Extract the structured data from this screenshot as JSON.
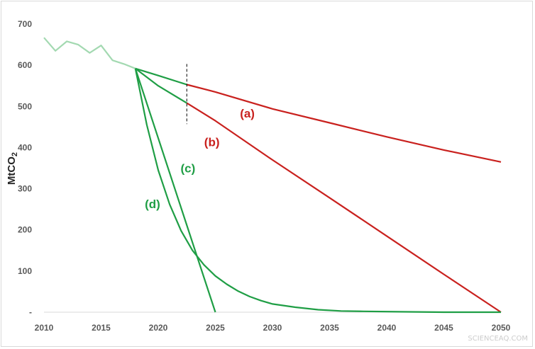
{
  "chart_data": {
    "type": "line",
    "xlabel": "",
    "ylabel": "MtCO",
    "ylabel_subscript": "2",
    "xlim": [
      2010,
      2050
    ],
    "ylim": [
      0,
      700
    ],
    "x_ticks": [
      "2010",
      "2015",
      "2020",
      "2025",
      "2030",
      "2035",
      "2040",
      "2045",
      "2050"
    ],
    "y_ticks": [
      "-",
      "100",
      "200",
      "300",
      "400",
      "500",
      "600",
      "700"
    ],
    "grid": false,
    "legend": "none",
    "annotations": [
      {
        "label": "(a)",
        "color": "#c9211e",
        "x": 2027.8,
        "y": 473
      },
      {
        "label": "(b)",
        "color": "#c9211e",
        "x": 2024.7,
        "y": 403
      },
      {
        "label": "(c)",
        "color": "#1f9e45",
        "x": 2022.6,
        "y": 340
      },
      {
        "label": "(d)",
        "color": "#1f9e45",
        "x": 2019.5,
        "y": 253
      }
    ],
    "marker_line": {
      "x": 2022.5,
      "y_from": 457,
      "y_to": 603,
      "style": "dashed"
    },
    "series": [
      {
        "color": "#a3d9b1",
        "x": [
          2010,
          2011,
          2012,
          2013,
          2014,
          2015,
          2016,
          2017,
          2018
        ],
        "y": [
          667,
          635,
          658,
          650,
          630,
          648,
          612,
          603,
          592
        ]
      },
      {
        "color": "#c9211e",
        "x": [
          2022.5,
          2025,
          2030,
          2035,
          2040,
          2045,
          2050
        ],
        "y": [
          553,
          535,
          494,
          460,
          426,
          394,
          365
        ]
      },
      {
        "color": "#1f9e45",
        "x": [
          2018,
          2020,
          2022.5
        ],
        "y": [
          592,
          575,
          553
        ]
      },
      {
        "color": "#c9211e",
        "x": [
          2022.5,
          2025,
          2030,
          2035,
          2040,
          2045,
          2050
        ],
        "y": [
          508,
          465,
          370,
          278,
          185,
          92,
          0
        ]
      },
      {
        "color": "#1f9e45",
        "x": [
          2018,
          2020,
          2022.5
        ],
        "y": [
          592,
          550,
          508
        ]
      },
      {
        "color": "#1f9e45",
        "x": [
          2018,
          2025
        ],
        "y": [
          592,
          0
        ]
      },
      {
        "color": "#1f9e45",
        "x": [
          2018,
          2019,
          2020,
          2021,
          2022,
          2023,
          2024,
          2025,
          2026,
          2027,
          2028,
          2029,
          2030,
          2032,
          2034,
          2036,
          2038,
          2041,
          2045,
          2050
        ],
        "y": [
          592,
          455,
          345,
          262,
          198,
          150,
          115,
          88,
          68,
          51,
          38,
          28,
          20,
          12,
          6,
          3,
          2,
          1,
          0,
          0
        ]
      }
    ]
  },
  "watermark": "SCIENCEAQ.COM"
}
